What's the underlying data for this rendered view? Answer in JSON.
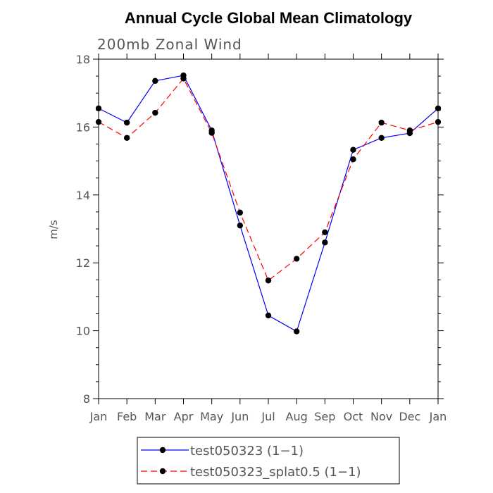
{
  "chart_data": {
    "type": "line",
    "title": "Annual Cycle Global Mean Climatology",
    "subtitle": "200mb Zonal Wind",
    "ylabel": "m/s",
    "xlabel": "",
    "categories": [
      "Jan",
      "Feb",
      "Mar",
      "Apr",
      "May",
      "Jun",
      "Jul",
      "Aug",
      "Sep",
      "Oct",
      "Nov",
      "Dec",
      "Jan"
    ],
    "ylim": [
      8,
      18
    ],
    "yticks": [
      8,
      10,
      12,
      14,
      16,
      18
    ],
    "series": [
      {
        "name": "test050323 (1−1)",
        "color": "#0000ff",
        "style": "solid",
        "marker": "filled-circle",
        "values": [
          16.55,
          16.13,
          17.36,
          17.52,
          15.9,
          13.1,
          10.45,
          9.98,
          12.6,
          15.33,
          15.68,
          15.82,
          16.55
        ]
      },
      {
        "name": "test050323_splat0.5 (1−1)",
        "color": "#ff0000",
        "style": "dashed",
        "marker": "filled-circle",
        "values": [
          16.15,
          15.68,
          16.42,
          17.43,
          15.83,
          13.48,
          11.48,
          12.12,
          12.9,
          15.05,
          16.13,
          15.9,
          16.15
        ]
      }
    ],
    "grid": false,
    "legend": "bottom-center"
  }
}
